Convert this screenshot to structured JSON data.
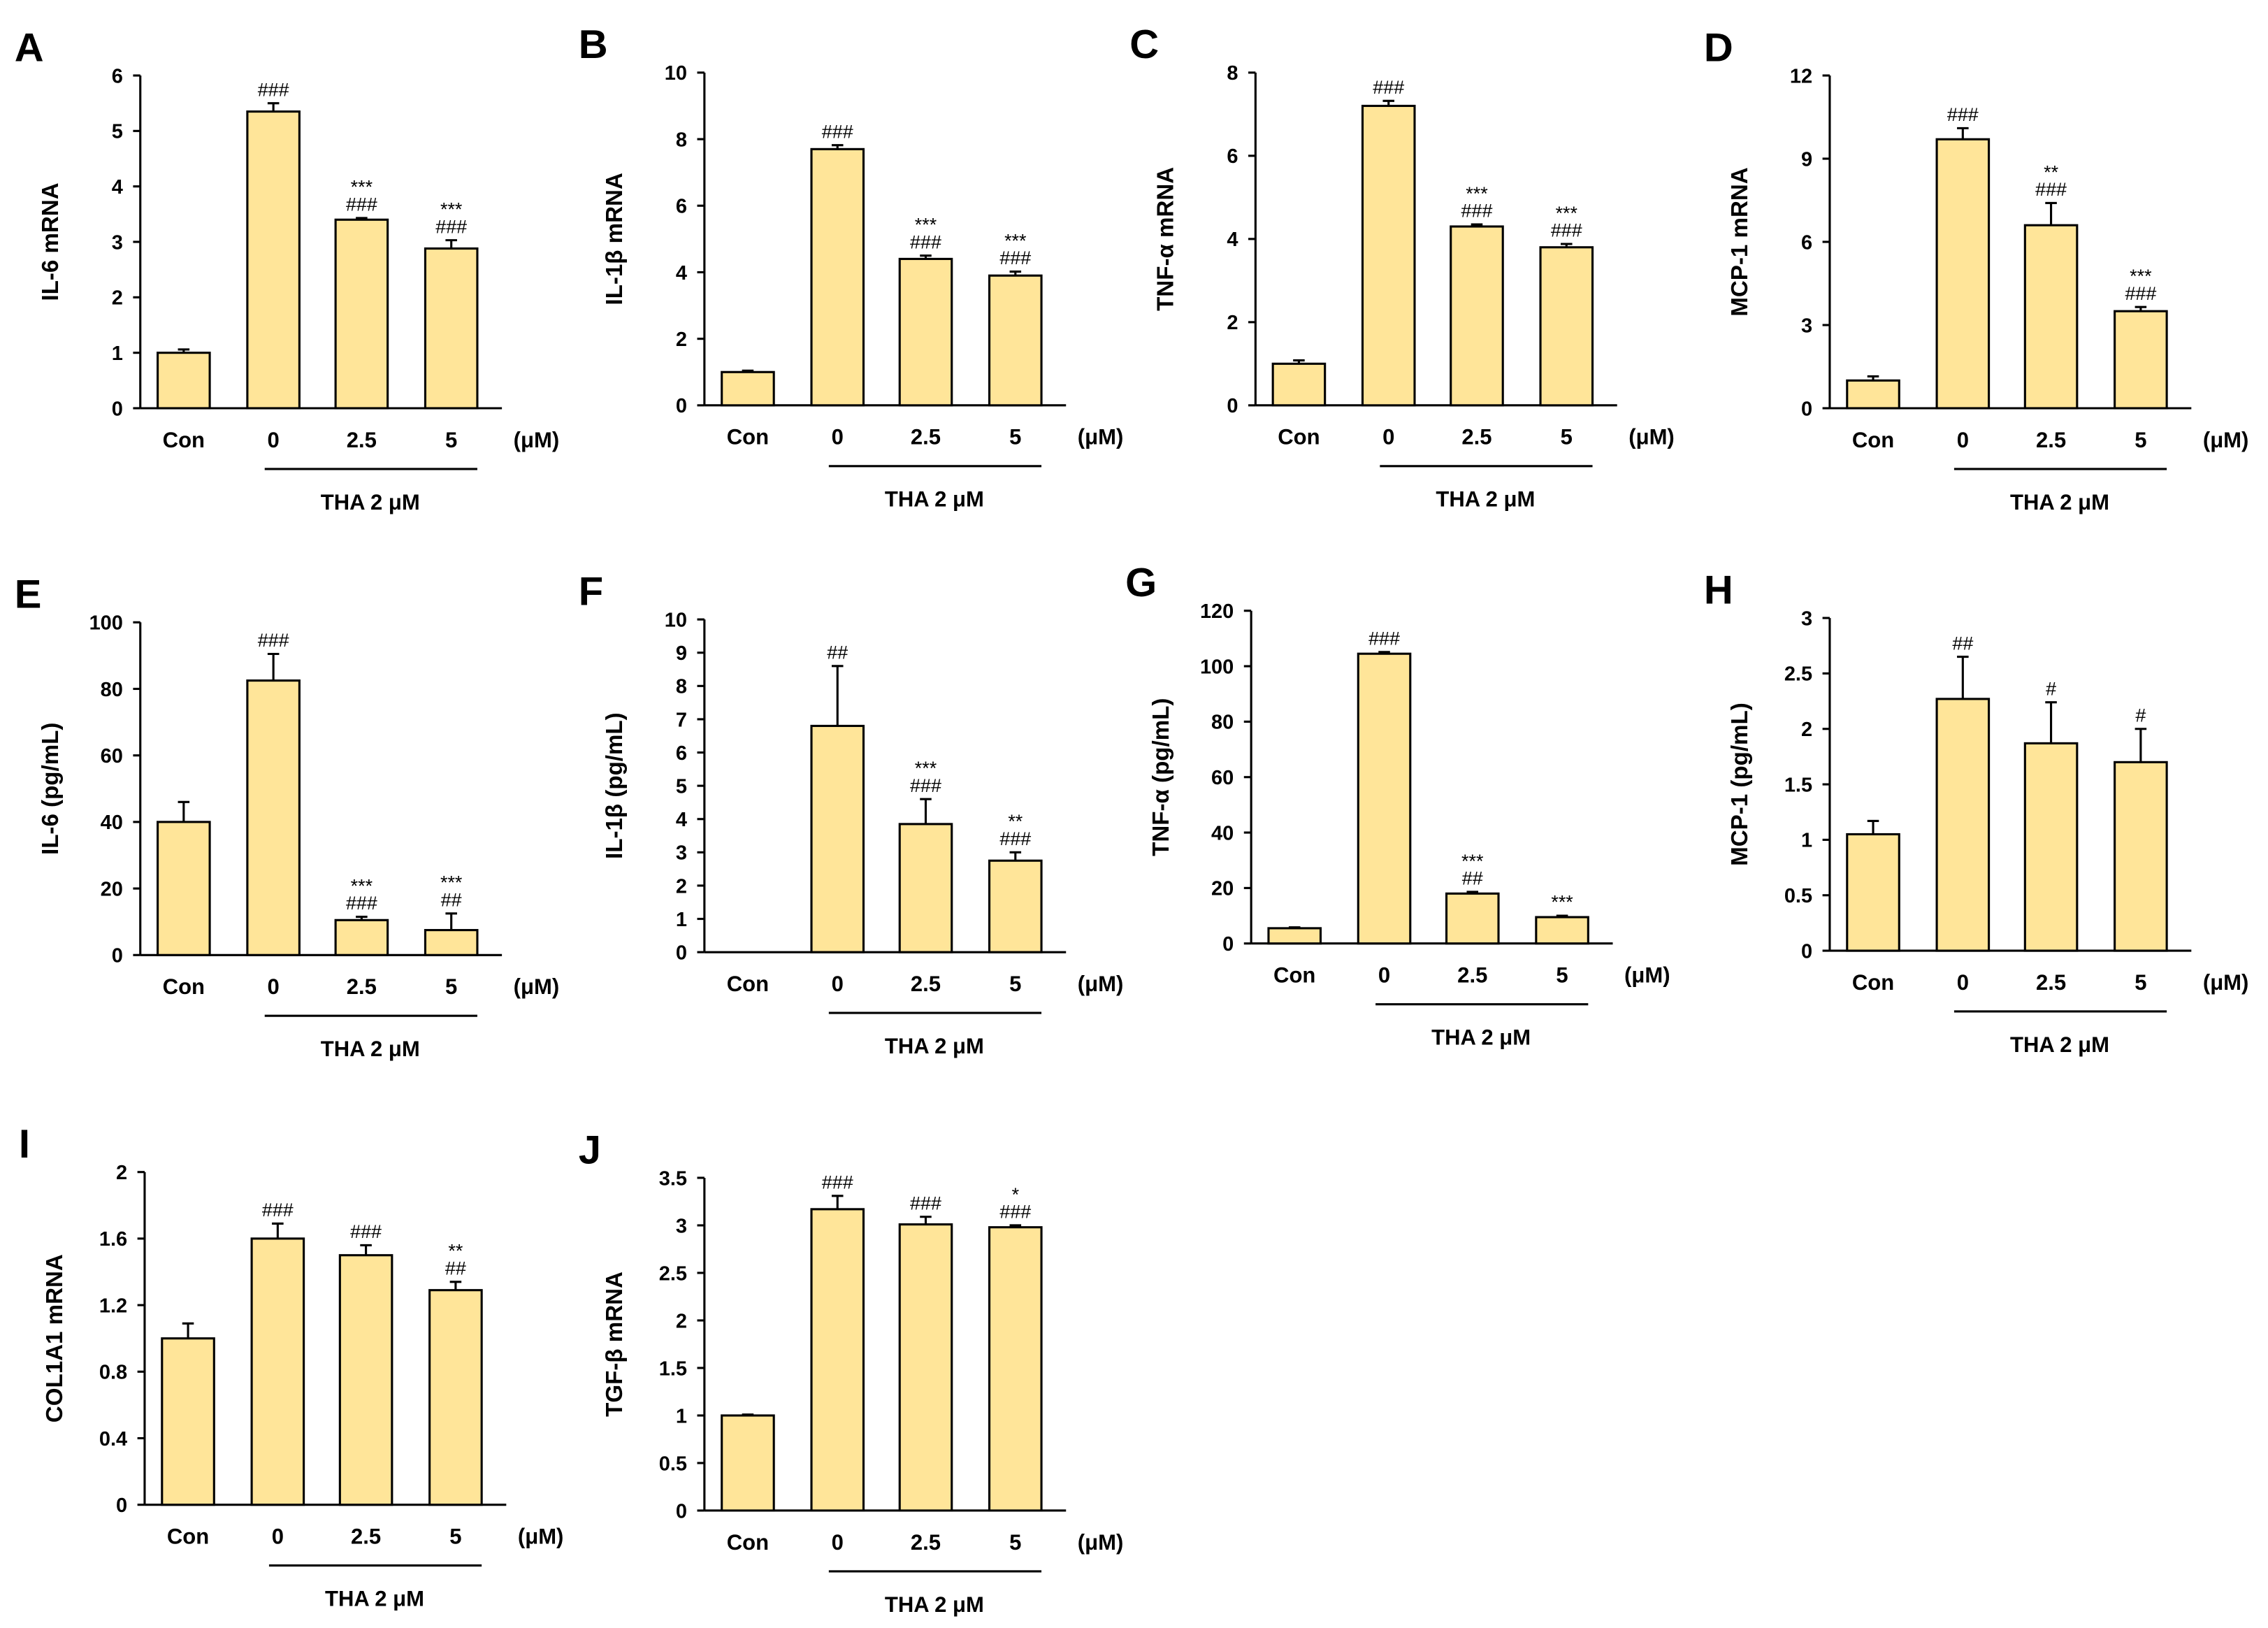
{
  "colors": {
    "bar": "#FFE599",
    "stroke": "#000000"
  },
  "chart_data": [
    {
      "panel": "A",
      "type": "bar",
      "ylabel": "IL-6 mRNA",
      "ylim": [
        0,
        6
      ],
      "yticks": [
        "0",
        "1",
        "2",
        "3",
        "4",
        "5",
        "6"
      ],
      "categories": [
        "Con",
        "0",
        "2.5",
        "5"
      ],
      "values": [
        1.0,
        5.35,
        3.4,
        2.88
      ],
      "errors": [
        0.06,
        0.15,
        0.03,
        0.15
      ],
      "annotations": [
        [],
        [
          "###"
        ],
        [
          "***",
          "###"
        ],
        [
          "***",
          "###"
        ]
      ],
      "unit": "(μM)",
      "group_label": "THA 2 μM"
    },
    {
      "panel": "B",
      "type": "bar",
      "ylabel": "IL-1β mRNA",
      "ylim": [
        0,
        10
      ],
      "yticks": [
        "0",
        "2",
        "4",
        "6",
        "8",
        "10"
      ],
      "categories": [
        "Con",
        "0",
        "2.5",
        "5"
      ],
      "values": [
        1.0,
        7.7,
        4.4,
        3.9
      ],
      "errors": [
        0.04,
        0.12,
        0.1,
        0.12
      ],
      "annotations": [
        [],
        [
          "###"
        ],
        [
          "***",
          "###"
        ],
        [
          "***",
          "###"
        ]
      ],
      "unit": "(μM)",
      "group_label": "THA 2 μM"
    },
    {
      "panel": "C",
      "type": "bar",
      "ylabel": "TNF-α mRNA",
      "ylim": [
        0,
        8
      ],
      "yticks": [
        "0",
        "2",
        "4",
        "6",
        "8"
      ],
      "categories": [
        "Con",
        "0",
        "2.5",
        "5"
      ],
      "values": [
        1.0,
        7.2,
        4.3,
        3.8
      ],
      "errors": [
        0.08,
        0.12,
        0.05,
        0.08
      ],
      "annotations": [
        [],
        [
          "###"
        ],
        [
          "***",
          "###"
        ],
        [
          "***",
          "###"
        ]
      ],
      "unit": "(μM)",
      "group_label": "THA 2 μM"
    },
    {
      "panel": "D",
      "type": "bar",
      "ylabel": "MCP-1 mRNA",
      "ylim": [
        0,
        12
      ],
      "yticks": [
        "0",
        "3",
        "6",
        "9",
        "12"
      ],
      "categories": [
        "Con",
        "0",
        "2.5",
        "5"
      ],
      "values": [
        1.0,
        9.7,
        6.6,
        3.5
      ],
      "errors": [
        0.15,
        0.4,
        0.8,
        0.15
      ],
      "annotations": [
        [],
        [
          "###"
        ],
        [
          "**",
          "###"
        ],
        [
          "***",
          "###"
        ]
      ],
      "unit": "(μM)",
      "group_label": "THA 2 μM"
    },
    {
      "panel": "E",
      "type": "bar",
      "ylabel": "IL-6 (pg/mL)",
      "ylim": [
        0,
        100
      ],
      "yticks": [
        "0",
        "20",
        "40",
        "60",
        "80",
        "100"
      ],
      "categories": [
        "Con",
        "0",
        "2.5",
        "5"
      ],
      "values": [
        40,
        82.5,
        10.5,
        7.5
      ],
      "errors": [
        6,
        8,
        1,
        5
      ],
      "annotations": [
        [],
        [
          "###"
        ],
        [
          "***",
          "###"
        ],
        [
          "***",
          "##"
        ]
      ],
      "unit": "(μM)",
      "group_label": "THA 2 μM"
    },
    {
      "panel": "F",
      "type": "bar",
      "ylabel": "IL-1β (pg/mL)",
      "ylim": [
        0,
        10
      ],
      "yticks": [
        "0",
        "1",
        "2",
        "3",
        "4",
        "5",
        "6",
        "7",
        "8",
        "9",
        "10"
      ],
      "categories": [
        "Con",
        "0",
        "2.5",
        "5"
      ],
      "values": [
        0,
        6.8,
        3.85,
        2.75
      ],
      "errors": [
        0,
        1.8,
        0.75,
        0.25
      ],
      "annotations": [
        [],
        [
          "##"
        ],
        [
          "***",
          "###"
        ],
        [
          "**",
          "###"
        ]
      ],
      "unit": "(μM)",
      "group_label": "THA 2 μM"
    },
    {
      "panel": "G",
      "type": "bar",
      "ylabel": "TNF-α (pg/mL)",
      "ylim": [
        0,
        120
      ],
      "yticks": [
        "0",
        "20",
        "40",
        "60",
        "80",
        "100",
        "120"
      ],
      "categories": [
        "Con",
        "0",
        "2.5",
        "5"
      ],
      "values": [
        5.5,
        104.5,
        18,
        9.5
      ],
      "errors": [
        0.3,
        0.6,
        0.6,
        0.5
      ],
      "annotations": [
        [],
        [
          "###"
        ],
        [
          "***",
          "##"
        ],
        [
          "***"
        ]
      ],
      "unit": "(μM)",
      "group_label": "THA 2 μM"
    },
    {
      "panel": "H",
      "type": "bar",
      "ylabel": "MCP-1 (pg/mL)",
      "ylim": [
        0,
        3
      ],
      "yticks": [
        "0",
        "0.5",
        "1",
        "1.5",
        "2",
        "2.5",
        "3"
      ],
      "categories": [
        "Con",
        "0",
        "2.5",
        "5"
      ],
      "values": [
        1.05,
        2.27,
        1.87,
        1.7
      ],
      "errors": [
        0.12,
        0.38,
        0.37,
        0.3
      ],
      "annotations": [
        [],
        [
          "##"
        ],
        [
          "#"
        ],
        [
          "#"
        ]
      ],
      "unit": "(μM)",
      "group_label": "THA 2 μM"
    },
    {
      "panel": "I",
      "type": "bar",
      "ylabel": "COL1A1 mRNA",
      "ylim": [
        0,
        2
      ],
      "yticks": [
        "0",
        "0.4",
        "0.8",
        "1.2",
        "1.6",
        "2"
      ],
      "categories": [
        "Con",
        "0",
        "2.5",
        "5"
      ],
      "values": [
        1.0,
        1.6,
        1.5,
        1.29
      ],
      "errors": [
        0.09,
        0.09,
        0.06,
        0.05
      ],
      "annotations": [
        [],
        [
          "###"
        ],
        [
          "###"
        ],
        [
          "**",
          "##"
        ]
      ],
      "unit": "(μM)",
      "group_label": "THA 2 μM"
    },
    {
      "panel": "J",
      "type": "bar",
      "ylabel": "TGF-β mRNA",
      "ylim": [
        0,
        3.5
      ],
      "yticks": [
        "0",
        "0.5",
        "1",
        "1.5",
        "2",
        "2.5",
        "3",
        "3.5"
      ],
      "categories": [
        "Con",
        "0",
        "2.5",
        "5"
      ],
      "values": [
        1.0,
        3.17,
        3.01,
        2.98
      ],
      "errors": [
        0.01,
        0.14,
        0.08,
        0.02
      ],
      "annotations": [
        [],
        [
          "###"
        ],
        [
          "###"
        ],
        [
          "*",
          "###"
        ]
      ],
      "unit": "(μM)",
      "group_label": "THA 2 μM"
    }
  ]
}
